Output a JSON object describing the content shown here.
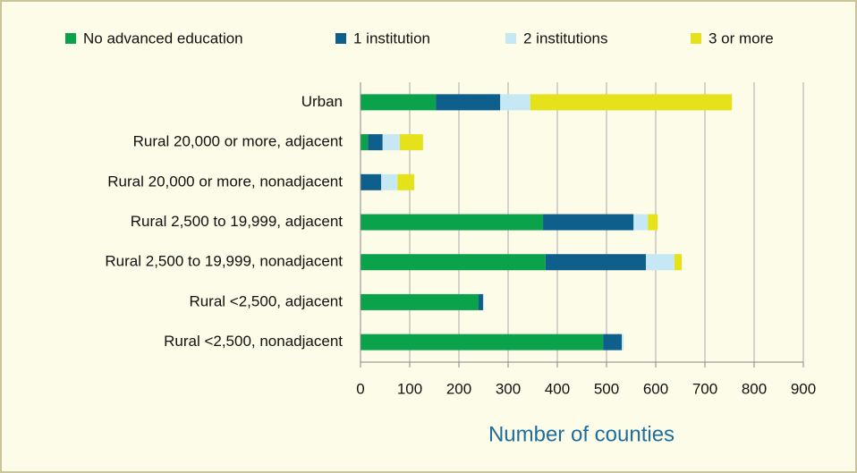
{
  "chart_data": {
    "type": "stacked-bar-horizontal",
    "categories": [
      "Urban",
      "Rural 20,000 or more, adjacent",
      "Rural 20,000 or more, nonadjacent",
      "Rural 2,500 to 19,999, adjacent",
      "Rural 2,500 to 19,999, nonadjacent",
      "Rural <2,500, adjacent",
      "Rural <2,500, nonadjacent"
    ],
    "series": [
      {
        "name": "No advanced education",
        "color": "#0ba24c",
        "values": [
          153,
          15,
          0,
          371,
          376,
          240,
          493
        ]
      },
      {
        "name": "1 institution",
        "color": "#0f5f8d",
        "values": [
          131,
          30,
          42,
          184,
          204,
          9,
          38
        ]
      },
      {
        "name": "2 institutions",
        "color": "#c6e8f5",
        "values": [
          61,
          35,
          33,
          29,
          58,
          2,
          4
        ]
      },
      {
        "name": "3 or more",
        "color": "#e5e11b",
        "values": [
          410,
          47,
          34,
          20,
          15,
          0,
          0
        ]
      }
    ],
    "xlim": [
      0,
      900
    ],
    "xticks": [
      0,
      100,
      200,
      300,
      400,
      500,
      600,
      700,
      800,
      900
    ],
    "xlabel": "Number of counties",
    "grid": true
  }
}
